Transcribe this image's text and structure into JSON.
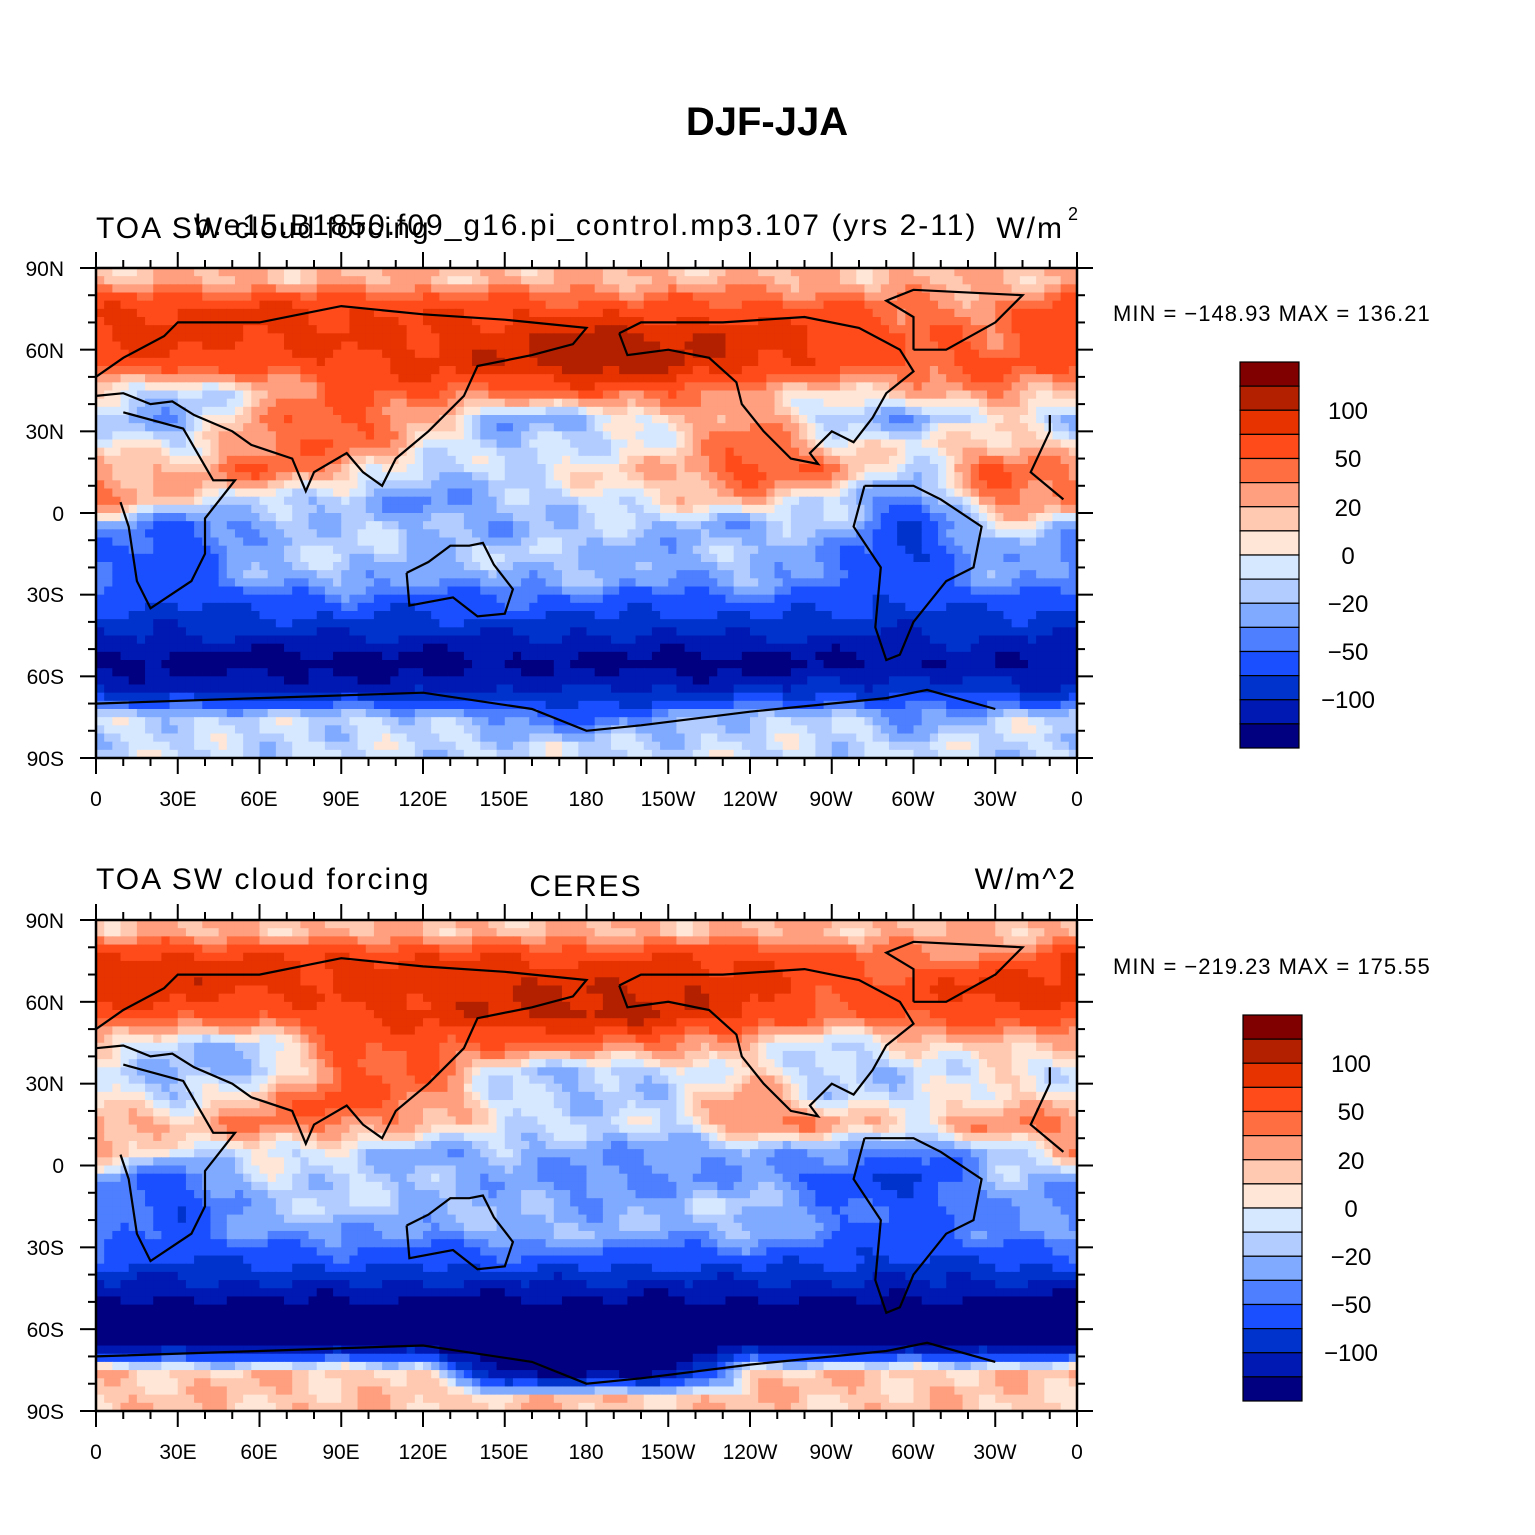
{
  "figure": {
    "title": "DJF-JJA"
  },
  "colors": {
    "levels": [
      "#000080",
      "#0019b3",
      "#0033cc",
      "#1a4fff",
      "#4d7fff",
      "#7faaff",
      "#b3ccff",
      "#d6e8ff",
      "#ffe6d6",
      "#ffc8b0",
      "#ff9f7f",
      "#ff6e40",
      "#ff4a1a",
      "#e63300",
      "#b32000",
      "#800000"
    ],
    "coast": "#000000"
  },
  "panels": [
    {
      "id": "model",
      "title_left": "TOA SW cloud forcing",
      "title_center": "b.e15.B1850.f09_g16.pi_control.mp3.107 (yrs 2-11)",
      "title_right": "W/m",
      "title_right_sup": "2",
      "min_max": "MIN = −148.93 MAX = 136.21",
      "colorbar_labels": [
        "100",
        "50",
        "20",
        "0",
        "−20",
        "−50",
        "−100"
      ]
    },
    {
      "id": "obs",
      "title_left": "TOA SW cloud forcing",
      "title_center": "CERES",
      "title_right": "W/m^2",
      "title_right_sup": "",
      "min_max": "MIN = −219.23 MAX = 175.55",
      "colorbar_labels": [
        "100",
        "50",
        "20",
        "0",
        "−20",
        "−50",
        "−100"
      ]
    }
  ],
  "axes": {
    "lat_labels": [
      "90N",
      "60N",
      "30N",
      "0",
      "30S",
      "60S",
      "90S"
    ],
    "lon_labels": [
      "0",
      "30E",
      "60E",
      "90E",
      "120E",
      "150E",
      "180",
      "150W",
      "120W",
      "90W",
      "60W",
      "30W",
      "0"
    ]
  },
  "chart_data": {
    "type": "heatmap",
    "title": "DJF-JJA",
    "variable": "TOA SW cloud forcing",
    "units": "W/m^2",
    "contour_levels": [
      -150,
      -125,
      -100,
      -75,
      -50,
      -35,
      -20,
      -10,
      0,
      10,
      20,
      35,
      50,
      75,
      100,
      125,
      150
    ],
    "xlim": [
      0,
      360
    ],
    "ylim": [
      -90,
      90
    ],
    "panels": [
      {
        "name": "b.e15.B1850.f09_g16.pi_control.mp3.107 (yrs 2-11)",
        "min": -148.93,
        "max": 136.21,
        "field": {
          "lat": [
            85,
            75,
            65,
            55,
            45,
            35,
            25,
            15,
            5,
            -5,
            -15,
            -25,
            -35,
            -45,
            -55,
            -65,
            -75,
            -85
          ],
          "lon": [
            0,
            30,
            60,
            90,
            120,
            150,
            180,
            210,
            240,
            270,
            300,
            330,
            360
          ],
          "values": [
            [
              20,
              20,
              20,
              20,
              20,
              20,
              20,
              20,
              20,
              20,
              20,
              20,
              20
            ],
            [
              70,
              80,
              80,
              75,
              70,
              70,
              60,
              60,
              60,
              55,
              40,
              30,
              70
            ],
            [
              80,
              85,
              80,
              80,
              80,
              90,
              110,
              100,
              90,
              75,
              50,
              40,
              80
            ],
            [
              60,
              70,
              60,
              70,
              80,
              100,
              120,
              110,
              85,
              60,
              50,
              55,
              60
            ],
            [
              10,
              -20,
              10,
              50,
              60,
              40,
              60,
              50,
              20,
              10,
              20,
              40,
              10
            ],
            [
              -20,
              -30,
              30,
              60,
              20,
              -30,
              -20,
              10,
              40,
              -20,
              -30,
              5,
              -20
            ],
            [
              10,
              -10,
              40,
              50,
              10,
              -20,
              -10,
              5,
              50,
              10,
              0,
              20,
              10
            ],
            [
              30,
              20,
              50,
              20,
              -20,
              -10,
              10,
              20,
              60,
              40,
              -20,
              60,
              30
            ],
            [
              40,
              10,
              -10,
              -20,
              -40,
              -20,
              -10,
              10,
              20,
              -10,
              -50,
              40,
              40
            ],
            [
              -20,
              -60,
              -30,
              -10,
              -20,
              -30,
              -10,
              -20,
              -30,
              -10,
              -80,
              0,
              -20
            ],
            [
              -50,
              -70,
              -20,
              -10,
              -20,
              -10,
              -20,
              -30,
              -10,
              -40,
              -80,
              -20,
              -50
            ],
            [
              -40,
              -60,
              -30,
              -20,
              -40,
              -30,
              -20,
              -40,
              -20,
              -50,
              -60,
              -30,
              -40
            ],
            [
              -70,
              -80,
              -70,
              -60,
              -70,
              -60,
              -70,
              -70,
              -60,
              -70,
              -80,
              -70,
              -70
            ],
            [
              -100,
              -100,
              -100,
              -100,
              -100,
              -100,
              -100,
              -100,
              -100,
              -100,
              -100,
              -100,
              -100
            ],
            [
              -130,
              -135,
              -140,
              -140,
              -140,
              -130,
              -130,
              -140,
              -140,
              -130,
              -120,
              -120,
              -130
            ],
            [
              -100,
              -110,
              -110,
              -110,
              -110,
              -100,
              -100,
              -100,
              -100,
              -90,
              -80,
              -90,
              -100
            ],
            [
              -10,
              -10,
              -10,
              -10,
              -10,
              -40,
              -60,
              -30,
              -10,
              -10,
              -40,
              -10,
              -10
            ],
            [
              -10,
              -10,
              -10,
              -10,
              -10,
              -10,
              -10,
              -10,
              -10,
              -10,
              -10,
              -10,
              -10
            ]
          ]
        }
      },
      {
        "name": "CERES",
        "min": -219.23,
        "max": 175.55,
        "field": {
          "lat": [
            85,
            75,
            65,
            55,
            45,
            35,
            25,
            15,
            5,
            -5,
            -15,
            -25,
            -35,
            -45,
            -55,
            -65,
            -75,
            -85
          ],
          "lon": [
            0,
            30,
            60,
            90,
            120,
            150,
            180,
            210,
            240,
            270,
            300,
            330,
            360
          ],
          "values": [
            [
              20,
              20,
              20,
              20,
              20,
              20,
              20,
              20,
              20,
              20,
              20,
              20,
              20
            ],
            [
              80,
              90,
              85,
              80,
              80,
              80,
              70,
              80,
              80,
              60,
              40,
              40,
              80
            ],
            [
              90,
              90,
              80,
              80,
              90,
              100,
              100,
              100,
              80,
              60,
              60,
              100,
              90
            ],
            [
              60,
              60,
              50,
              70,
              80,
              100,
              110,
              100,
              80,
              40,
              60,
              60,
              60
            ],
            [
              20,
              -20,
              -10,
              50,
              60,
              50,
              50,
              40,
              10,
              -10,
              10,
              20,
              20
            ],
            [
              -10,
              -20,
              -30,
              50,
              50,
              -10,
              -20,
              -10,
              10,
              -20,
              -10,
              0,
              -10
            ],
            [
              10,
              -20,
              30,
              60,
              40,
              -10,
              -20,
              -10,
              30,
              -10,
              -10,
              10,
              10
            ],
            [
              30,
              20,
              40,
              40,
              20,
              0,
              -10,
              -10,
              40,
              30,
              10,
              40,
              30
            ],
            [
              30,
              -10,
              0,
              -10,
              -30,
              -20,
              -30,
              -30,
              -30,
              -30,
              -50,
              -20,
              30
            ],
            [
              -30,
              -60,
              -10,
              -10,
              -20,
              -30,
              -40,
              -40,
              -30,
              -60,
              -80,
              -20,
              -30
            ],
            [
              -40,
              -70,
              -20,
              -10,
              -20,
              -20,
              -30,
              -20,
              -10,
              -40,
              -70,
              -30,
              -40
            ],
            [
              -30,
              -60,
              -30,
              -30,
              -40,
              -20,
              -20,
              -30,
              -20,
              -50,
              -60,
              -40,
              -30
            ],
            [
              -60,
              -80,
              -70,
              -60,
              -70,
              -60,
              -60,
              -70,
              -60,
              -70,
              -80,
              -70,
              -60
            ],
            [
              -110,
              -110,
              -110,
              -110,
              -110,
              -110,
              -110,
              -110,
              -110,
              -110,
              -110,
              -110,
              -110
            ],
            [
              -150,
              -150,
              -150,
              -150,
              -150,
              -150,
              -150,
              -150,
              -150,
              -150,
              -150,
              -150,
              -150
            ],
            [
              -150,
              -150,
              -150,
              -150,
              -150,
              -150,
              -150,
              -150,
              -150,
              -150,
              -150,
              -150,
              -150
            ],
            [
              15,
              15,
              15,
              15,
              15,
              -150,
              -150,
              -150,
              15,
              15,
              15,
              15,
              15
            ],
            [
              15,
              15,
              15,
              15,
              15,
              15,
              15,
              15,
              15,
              15,
              15,
              15,
              15
            ]
          ]
        }
      }
    ]
  }
}
